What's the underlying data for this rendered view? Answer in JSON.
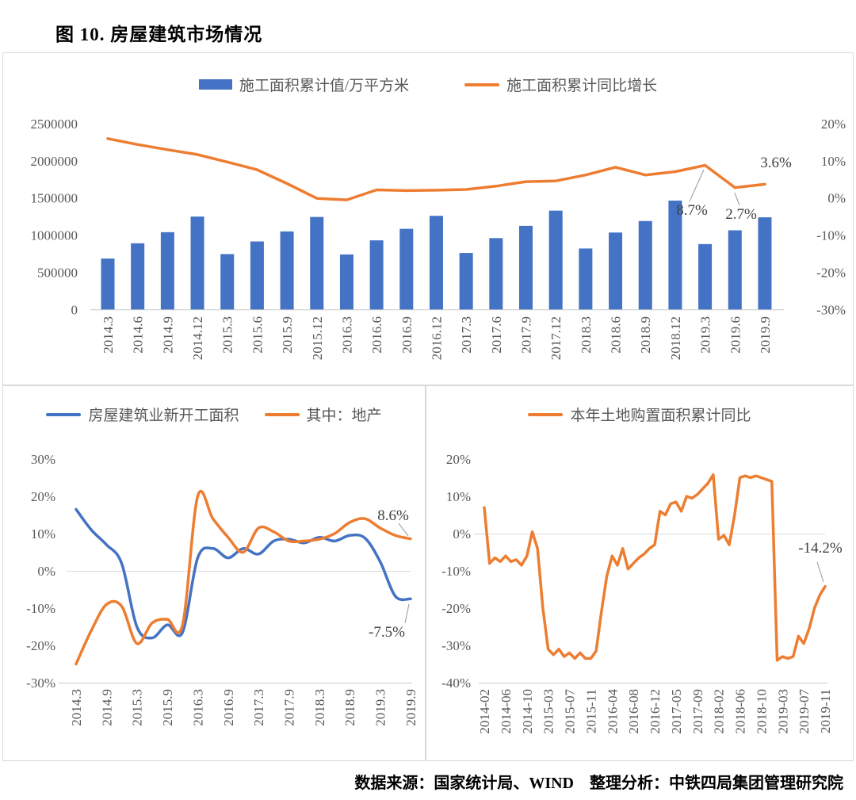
{
  "page": {
    "title": "图 10. 房屋建筑市场情况",
    "footer": "数据来源：国家统计局、WIND　整理分析：中铁四局集团管理研究院"
  },
  "colors": {
    "blue": "#4472C4",
    "orange": "#ED7D31",
    "axis_text": "#595959",
    "axis_line": "#c9c9c9",
    "grid_line": "#d9d9d9",
    "annotation_text": "#404040",
    "leader_line": "#a6a6a6"
  },
  "chart_data": [
    {
      "id": "construction-area",
      "type": "bar",
      "legend_position": "top",
      "grid": false,
      "categories": [
        "2014.3",
        "2014.6",
        "2014.9",
        "2014.12",
        "2015.3",
        "2015.6",
        "2015.9",
        "2015.12",
        "2016.3",
        "2016.6",
        "2016.9",
        "2016.12",
        "2017.3",
        "2017.6",
        "2017.9",
        "2017.12",
        "2018.3",
        "2018.6",
        "2018.9",
        "2018.12",
        "2019.3",
        "2019.6",
        "2019.9"
      ],
      "series": [
        {
          "name": "施工面积累计值/万平方米",
          "type": "bar",
          "color": "blue",
          "axis": "left",
          "values": [
            685000,
            890000,
            1040000,
            1250000,
            745000,
            915000,
            1050000,
            1245000,
            740000,
            930000,
            1085000,
            1260000,
            760000,
            960000,
            1125000,
            1330000,
            820000,
            1035000,
            1190000,
            1465000,
            880000,
            1065000,
            1240000
          ]
        },
        {
          "name": "施工面积累计同比增长",
          "type": "line",
          "color": "orange",
          "axis": "right",
          "values": [
            15.9,
            14.3,
            12.9,
            11.6,
            9.6,
            7.5,
            3.8,
            -0.2,
            -0.6,
            2.1,
            1.9,
            2.0,
            2.2,
            3.1,
            4.3,
            4.5,
            6.1,
            8.2,
            6.1,
            7.0,
            8.7,
            2.7,
            3.6
          ]
        }
      ],
      "left_axis": {
        "ticks": [
          "2500000",
          "2000000",
          "1500000",
          "1000000",
          "500000",
          "0"
        ],
        "min": 0,
        "max": 2500000
      },
      "right_axis": {
        "ticks": [
          "20%",
          "10%",
          "0%",
          "-10%",
          "-20%",
          "-30%"
        ],
        "min": -30,
        "max": 20
      },
      "annotations": [
        {
          "text": "8.7%",
          "category": "2019.3"
        },
        {
          "text": "2.7%",
          "category": "2019.6"
        },
        {
          "text": "3.6%",
          "category": "2019.9"
        }
      ]
    },
    {
      "id": "new-construction-starts",
      "type": "line",
      "legend_position": "top",
      "grid": "zero-line-only",
      "categories": [
        "2014.3",
        "2014.6",
        "2014.9",
        "2014.12",
        "2015.3",
        "2015.6",
        "2015.9",
        "2015.12",
        "2016.3",
        "2016.6",
        "2016.9",
        "2016.12",
        "2017.3",
        "2017.6",
        "2017.9",
        "2017.12",
        "2018.3",
        "2018.6",
        "2018.9",
        "2018.12",
        "2019.3",
        "2019.6",
        "2019.9"
      ],
      "x_tick_labels": [
        "2014.3",
        "2014.9",
        "2015.3",
        "2015.9",
        "2016.3",
        "2016.9",
        "2017.3",
        "2017.9",
        "2018.3",
        "2018.9",
        "2019.3",
        "2019.9"
      ],
      "series": [
        {
          "name": "房屋建筑业新开工面积",
          "color": "blue",
          "values": [
            16.5,
            11,
            7,
            2,
            -15,
            -18,
            -14.5,
            -16.5,
            3.5,
            6,
            3.5,
            6,
            4.5,
            8,
            8.5,
            7.5,
            9,
            8,
            9.5,
            8.8,
            2.5,
            -6.8,
            -7.5
          ]
        },
        {
          "name": "其中：地产",
          "color": "orange",
          "values": [
            -25,
            -16,
            -9,
            -9.5,
            -19.5,
            -14,
            -13,
            -14.5,
            20,
            14,
            9,
            5,
            11.5,
            10.5,
            8,
            8,
            8.5,
            10,
            13,
            14,
            11.5,
            9.5,
            8.6
          ]
        }
      ],
      "y_axis": {
        "ticks": [
          "30%",
          "20%",
          "10%",
          "0%",
          "-10%",
          "-20%",
          "-30%"
        ],
        "min": -30,
        "max": 30
      },
      "annotations": [
        {
          "text": "8.6%",
          "series": "其中：地产",
          "category": "2019.9"
        },
        {
          "text": "-7.5%",
          "series": "房屋建筑业新开工面积",
          "category": "2019.9"
        }
      ]
    },
    {
      "id": "land-purchase",
      "type": "line",
      "legend_position": "top",
      "grid": "zero-line-only",
      "monthly_from": "2014-02",
      "monthly_to": "2019-11",
      "january_omitted": true,
      "x_tick_labels": [
        "2014-02",
        "2014-06",
        "2014-10",
        "2015-03",
        "2015-07",
        "2015-11",
        "2016-04",
        "2016-08",
        "2016-12",
        "2017-05",
        "2017-09",
        "2018-02",
        "2018-06",
        "2018-10",
        "2019-03",
        "2019-07",
        "2019-11"
      ],
      "series": [
        {
          "name": "本年土地购置面积累计同比",
          "color": "orange",
          "values": [
            7,
            -8,
            -6.5,
            -7.5,
            -6,
            -7.5,
            -7,
            -8.5,
            -6,
            0.5,
            -4,
            -20,
            -31,
            -32.5,
            -31,
            -33,
            -32,
            -33.5,
            -32,
            -33.5,
            -33.5,
            -31.5,
            -21,
            -11.5,
            -6,
            -8.5,
            -4,
            -9.5,
            -8,
            -6.5,
            -5.5,
            -4,
            -3,
            6,
            5,
            8,
            8.5,
            6,
            10,
            9.5,
            10.5,
            12,
            13.5,
            15.8,
            -1.5,
            -0.5,
            -3,
            5,
            15,
            15.5,
            15,
            15.5,
            15,
            14.5,
            14,
            -34,
            -33,
            -33.5,
            -33,
            -27.5,
            -29.5,
            -25.5,
            -20,
            -16.5,
            -14.2
          ]
        }
      ],
      "y_axis": {
        "ticks": [
          "20%",
          "10%",
          "0%",
          "-10%",
          "-20%",
          "-30%",
          "-40%"
        ],
        "min": -40,
        "max": 20
      },
      "annotations": [
        {
          "text": "-14.2%",
          "category": "2019-11"
        }
      ]
    }
  ]
}
